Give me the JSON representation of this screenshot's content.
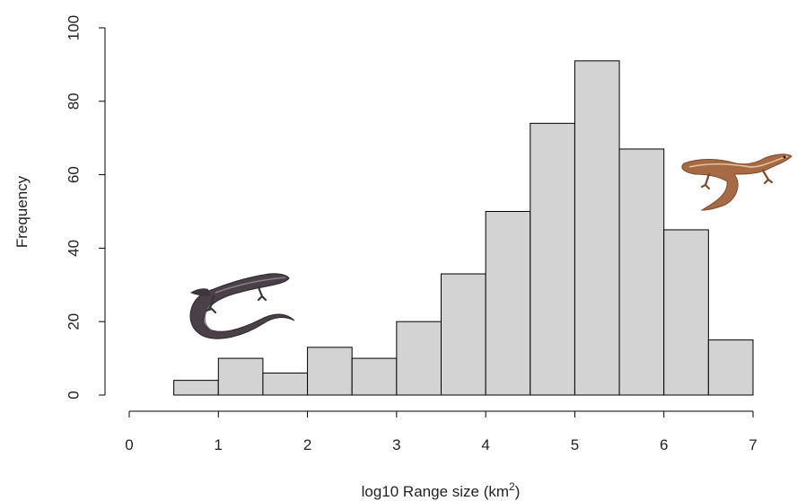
{
  "chart_data": {
    "type": "bar",
    "variant": "histogram",
    "bins": [
      {
        "from": 0.5,
        "to": 1.0,
        "value": 4
      },
      {
        "from": 1.0,
        "to": 1.5,
        "value": 10
      },
      {
        "from": 1.5,
        "to": 2.0,
        "value": 6
      },
      {
        "from": 2.0,
        "to": 2.5,
        "value": 13
      },
      {
        "from": 2.5,
        "to": 3.0,
        "value": 10
      },
      {
        "from": 3.0,
        "to": 3.5,
        "value": 20
      },
      {
        "from": 3.5,
        "to": 4.0,
        "value": 33
      },
      {
        "from": 4.0,
        "to": 4.5,
        "value": 50
      },
      {
        "from": 4.5,
        "to": 5.0,
        "value": 74
      },
      {
        "from": 5.0,
        "to": 5.5,
        "value": 91
      },
      {
        "from": 5.5,
        "to": 6.0,
        "value": 67
      },
      {
        "from": 6.0,
        "to": 6.5,
        "value": 45
      },
      {
        "from": 6.5,
        "to": 7.0,
        "value": 15
      }
    ],
    "title": "",
    "xlabel": "log10 Range size (km",
    "xlabel_superscript": "2",
    "xlabel_suffix": ")",
    "ylabel": "Frequency",
    "xlim": [
      0,
      7
    ],
    "ylim": [
      0,
      100
    ],
    "xticks": [
      "0",
      "1",
      "2",
      "3",
      "4",
      "5",
      "6",
      "7"
    ],
    "yticks": [
      "0",
      "20",
      "40",
      "60",
      "80",
      "100"
    ],
    "grid": false,
    "bar_color": "#d3d3d3",
    "edge_color": "#000000",
    "illustrations": [
      "dark-lizard-illustration",
      "brown-lizard-illustration"
    ]
  }
}
